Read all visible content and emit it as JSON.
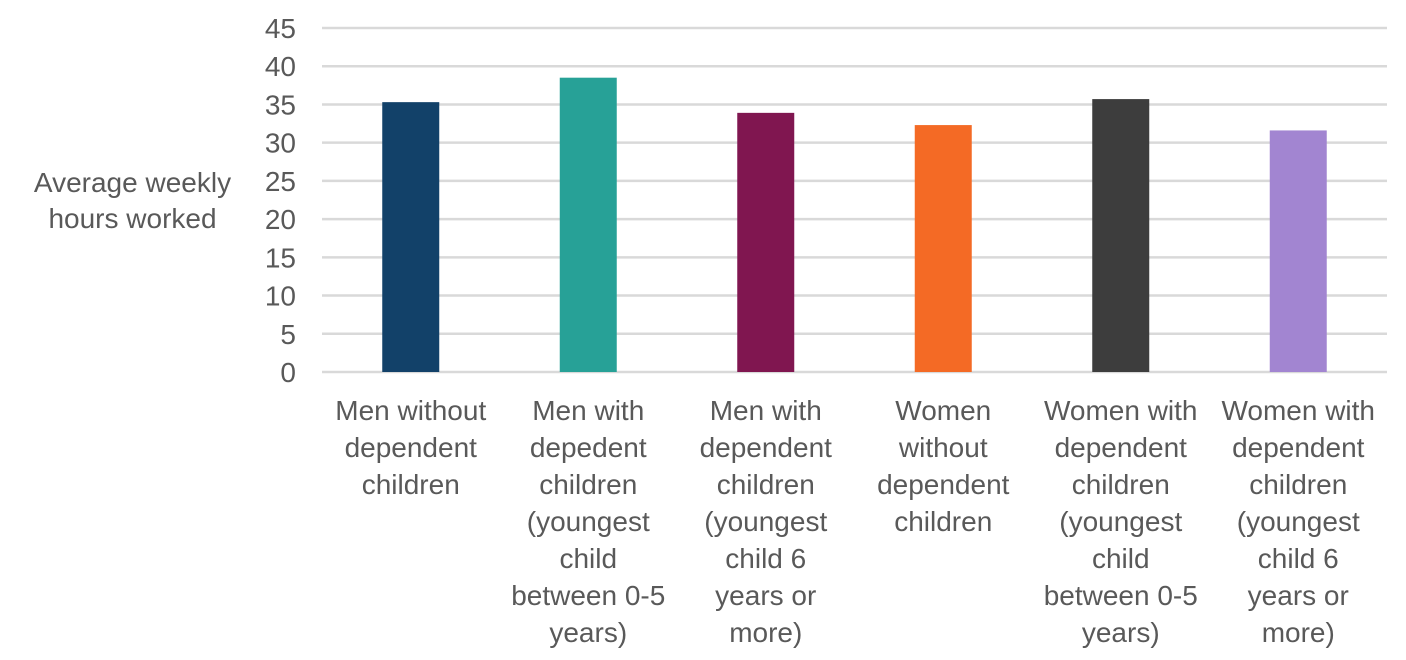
{
  "chart_data": {
    "type": "bar",
    "title": "",
    "xlabel": "",
    "ylabel_lines": [
      "Average weekly",
      "hours worked"
    ],
    "ylim": [
      0,
      45
    ],
    "yticks": [
      0,
      5,
      10,
      15,
      20,
      25,
      30,
      35,
      40,
      45
    ],
    "grid": true,
    "legend": "none",
    "categories": [
      [
        "Men without",
        "dependent",
        "children"
      ],
      [
        "Men with",
        "depedent",
        "children",
        "(youngest",
        "child",
        "between 0-5",
        "years)"
      ],
      [
        "Men with",
        "dependent",
        "children",
        "(youngest",
        "child 6",
        "years or",
        "more)"
      ],
      [
        "Women",
        "without",
        "dependent",
        "children"
      ],
      [
        "Women with",
        "dependent",
        "children",
        "(youngest",
        "child",
        "between 0-5",
        "years)"
      ],
      [
        "Women with",
        "dependent",
        "children",
        "(youngest",
        "child 6",
        "years or",
        "more)"
      ]
    ],
    "values": [
      35.3,
      38.5,
      33.9,
      32.3,
      35.7,
      31.6
    ],
    "colors": [
      "#124169",
      "#27a197",
      "#801650",
      "#f46a25",
      "#3d3d3d",
      "#a285d1"
    ],
    "axis_color": "#d9d9d9",
    "grid_color": "#d9d9d9",
    "text_color": "#595959"
  }
}
